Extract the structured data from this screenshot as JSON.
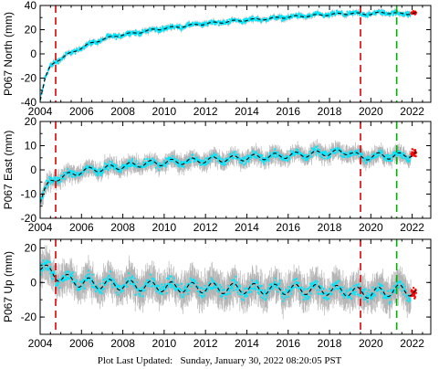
{
  "footer": {
    "label": "Plot Last Updated:",
    "datetime": "Sunday, January 30, 2022 08:20:05 PST"
  },
  "colors": {
    "daily_points": "#00e8ff",
    "error_bars": "#a8a8a8",
    "model": "#000000",
    "recent_points": "#ff0000",
    "red_marker": "#e00000",
    "green_marker": "#00b000"
  },
  "chart_data": [
    {
      "type": "scatter",
      "station": "P067",
      "ylabel": "P067 North (mm)",
      "xlim": [
        2004,
        2022.9
      ],
      "ylim": [
        -40,
        40
      ],
      "xticks": [
        2004,
        2006,
        2008,
        2010,
        2012,
        2014,
        2016,
        2018,
        2020,
        2022
      ],
      "yticks": [
        -40,
        -20,
        0,
        20,
        40
      ],
      "vlines": [
        {
          "x": 2004.75,
          "color": "red",
          "style": "dashed"
        },
        {
          "x": 2019.5,
          "color": "red",
          "style": "dashed"
        },
        {
          "x": 2021.25,
          "color": "green",
          "style": "dashed"
        }
      ],
      "trend_points": [
        [
          2004.0,
          -38
        ],
        [
          2004.25,
          -20
        ],
        [
          2004.5,
          -10
        ],
        [
          2004.75,
          -6
        ],
        [
          2005.0,
          -4
        ],
        [
          2005.5,
          1
        ],
        [
          2006.0,
          5
        ],
        [
          2006.5,
          9
        ],
        [
          2007.0,
          12
        ],
        [
          2007.5,
          14
        ],
        [
          2008.0,
          16
        ],
        [
          2008.5,
          17
        ],
        [
          2009.0,
          18.5
        ],
        [
          2009.5,
          20
        ],
        [
          2010.0,
          21
        ],
        [
          2011.0,
          23
        ],
        [
          2012.0,
          25
        ],
        [
          2013.0,
          26.5
        ],
        [
          2014.0,
          28
        ],
        [
          2015.0,
          29
        ],
        [
          2016.0,
          30.5
        ],
        [
          2017.0,
          31.5
        ],
        [
          2018.0,
          32.5
        ],
        [
          2019.0,
          33.5
        ],
        [
          2019.5,
          33
        ],
        [
          2020.0,
          33
        ],
        [
          2020.5,
          34
        ],
        [
          2021.0,
          34
        ],
        [
          2021.5,
          33
        ],
        [
          2022.0,
          33.5
        ],
        [
          2022.2,
          34
        ]
      ],
      "scatter_spread": 3,
      "error_bar": 1.5,
      "seasonal_amplitude": 0.8,
      "recent_segment": {
        "x_start": 2021.95,
        "x_end": 2022.2,
        "center": 34,
        "spread": 3
      }
    },
    {
      "type": "scatter",
      "station": "P067",
      "ylabel": "P067 East (mm)",
      "xlim": [
        2004,
        2022.9
      ],
      "ylim": [
        -20,
        20
      ],
      "xticks": [
        2004,
        2006,
        2008,
        2010,
        2012,
        2014,
        2016,
        2018,
        2020,
        2022
      ],
      "yticks": [
        -20,
        -10,
        0,
        10,
        20
      ],
      "vlines": [
        {
          "x": 2004.75,
          "color": "red",
          "style": "dashed"
        },
        {
          "x": 2019.5,
          "color": "red",
          "style": "dashed"
        },
        {
          "x": 2021.25,
          "color": "green",
          "style": "dashed"
        }
      ],
      "trend_points": [
        [
          2004.0,
          -13
        ],
        [
          2004.25,
          -8
        ],
        [
          2004.5,
          -5
        ],
        [
          2004.75,
          -3.5
        ],
        [
          2005.0,
          -3
        ],
        [
          2005.5,
          -2
        ],
        [
          2006.0,
          -0.5
        ],
        [
          2006.5,
          0
        ],
        [
          2007.0,
          0.5
        ],
        [
          2008.0,
          1.5
        ],
        [
          2009.0,
          2.5
        ],
        [
          2010.0,
          3
        ],
        [
          2011.0,
          3.5
        ],
        [
          2012.0,
          4
        ],
        [
          2013.0,
          4.5
        ],
        [
          2014.0,
          5
        ],
        [
          2015.0,
          5.5
        ],
        [
          2016.0,
          6
        ],
        [
          2017.0,
          6.5
        ],
        [
          2018.0,
          7
        ],
        [
          2019.0,
          7.5
        ],
        [
          2019.5,
          5
        ],
        [
          2020.0,
          5.5
        ],
        [
          2020.5,
          6
        ],
        [
          2021.0,
          5.5
        ],
        [
          2021.5,
          6
        ],
        [
          2022.0,
          6.5
        ],
        [
          2022.2,
          7
        ]
      ],
      "scatter_spread": 2.5,
      "error_bar": 2.5,
      "seasonal_amplitude": 1.2,
      "recent_segment": {
        "x_start": 2021.95,
        "x_end": 2022.2,
        "center": 7,
        "spread": 3
      }
    },
    {
      "type": "scatter",
      "station": "P067",
      "ylabel": "P067 Up (mm)",
      "xlim": [
        2004,
        2022.9
      ],
      "ylim": [
        -30,
        25
      ],
      "xticks": [
        2004,
        2006,
        2008,
        2010,
        2012,
        2014,
        2016,
        2018,
        2020,
        2022
      ],
      "yticks": [
        -20,
        0,
        20
      ],
      "vlines": [
        {
          "x": 2004.75,
          "color": "red",
          "style": "dashed"
        },
        {
          "x": 2019.5,
          "color": "red",
          "style": "dashed"
        },
        {
          "x": 2021.25,
          "color": "green",
          "style": "dashed"
        }
      ],
      "trend_points": [
        [
          2004.0,
          9
        ],
        [
          2004.5,
          6
        ],
        [
          2005.0,
          3
        ],
        [
          2005.5,
          1
        ],
        [
          2006.0,
          0
        ],
        [
          2007.0,
          -1
        ],
        [
          2008.0,
          -1.5
        ],
        [
          2009.0,
          -2
        ],
        [
          2010.0,
          -2.5
        ],
        [
          2011.0,
          -3
        ],
        [
          2012.0,
          -3
        ],
        [
          2013.0,
          -3.5
        ],
        [
          2014.0,
          -3.5
        ],
        [
          2015.0,
          -4
        ],
        [
          2016.0,
          -4
        ],
        [
          2017.0,
          -4
        ],
        [
          2018.0,
          -4.5
        ],
        [
          2019.0,
          -5
        ],
        [
          2019.5,
          -6
        ],
        [
          2020.0,
          -6
        ],
        [
          2021.0,
          -5
        ],
        [
          2021.5,
          -4
        ],
        [
          2022.0,
          -5
        ],
        [
          2022.2,
          -6
        ]
      ],
      "scatter_spread": 6,
      "error_bar": 7,
      "seasonal_amplitude": 3,
      "recent_segment": {
        "x_start": 2021.95,
        "x_end": 2022.2,
        "center": -6,
        "spread": 8
      }
    }
  ]
}
